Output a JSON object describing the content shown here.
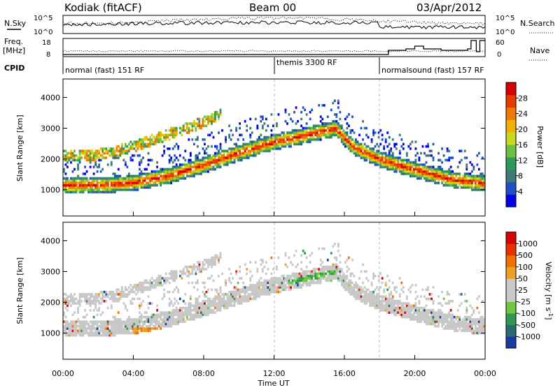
{
  "header": {
    "station": "Kodiak (fitACF)",
    "beam": "Beam 00",
    "date": "03/Apr/2012"
  },
  "top_panels": {
    "nsky_label": "N.Sky",
    "nsearch_label": "N.Search",
    "count_ticks": [
      "10^5",
      "10^0"
    ],
    "freq_label": "Freq.",
    "freq_unit": "[MHz]",
    "freq_ticks": [
      "18",
      "8"
    ],
    "nave_label": "Nave",
    "nave_ticks": [
      "60",
      "0"
    ],
    "cpid_label": "CPID",
    "cpid_segments": [
      {
        "label": "normal (fast) 151 RF",
        "start_hour": 0
      },
      {
        "label": "themis 3300 RF",
        "start_hour": 12
      },
      {
        "label": "normalsound (fast) 157 RF",
        "start_hour": 18
      }
    ]
  },
  "chart_data": [
    {
      "type": "heatmap",
      "title": "",
      "ylabel": "Slant Range [km]",
      "xlabel": "",
      "xlim": [
        0,
        24
      ],
      "ylim": [
        150,
        4600
      ],
      "yticks": [
        "4000",
        "3000",
        "2000",
        "1000"
      ],
      "ytick_values": [
        4000,
        3000,
        2000,
        1000
      ],
      "colorbar": {
        "label": "Power [dB]",
        "tick_labels": [
          "28",
          "24",
          "20",
          "16",
          "12",
          "8",
          "4"
        ],
        "colors": [
          "#0000ee",
          "#2050c8",
          "#3e7a78",
          "#2e9a5a",
          "#6cc040",
          "#c8d820",
          "#f0b000",
          "#f07800",
          "#e83a00",
          "#d80000"
        ]
      },
      "echo_bands": [
        {
          "name": "lower",
          "points": [
            [
              0,
              1150
            ],
            [
              2,
              1150
            ],
            [
              4,
              1230
            ],
            [
              6,
              1450
            ],
            [
              8,
              1800
            ],
            [
              10,
              2200
            ],
            [
              12,
              2550
            ],
            [
              14,
              2800
            ],
            [
              15.5,
              3000
            ],
            [
              16.5,
              2400
            ],
            [
              18,
              2000
            ],
            [
              20,
              1650
            ],
            [
              22,
              1350
            ],
            [
              24,
              1200
            ]
          ]
        },
        {
          "name": "upper",
          "points": [
            [
              0,
              2100
            ],
            [
              2,
              2150
            ],
            [
              4,
              2400
            ],
            [
              6,
              2800
            ],
            [
              8,
              3200
            ],
            [
              9,
              3450
            ]
          ]
        }
      ]
    },
    {
      "type": "heatmap",
      "title": "",
      "ylabel": "Slant Range [km]",
      "xlabel": "Time UT",
      "xlim": [
        0,
        24
      ],
      "ylim": [
        150,
        4600
      ],
      "xticks": [
        "00:00",
        "04:00",
        "08:00",
        "12:00",
        "16:00",
        "20:00",
        "00:00"
      ],
      "xtick_values": [
        0,
        4,
        8,
        12,
        16,
        20,
        24
      ],
      "yticks": [
        "4000",
        "3000",
        "2000",
        "1000"
      ],
      "ytick_values": [
        4000,
        3000,
        2000,
        1000
      ],
      "colorbar": {
        "label": "Velocity [m s",
        "label_sup": "-1",
        "tick_labels": [
          "1000",
          "500",
          "100",
          "50",
          "25",
          "-25",
          "-100",
          "-500",
          "-1000"
        ],
        "colors": [
          "#1a3aa0",
          "#2a6a70",
          "#2e9a50",
          "#70c840",
          "#c8c8c8",
          "#c8c8c8",
          "#f0a020",
          "#f07000",
          "#e83000",
          "#d80000"
        ]
      }
    }
  ]
}
